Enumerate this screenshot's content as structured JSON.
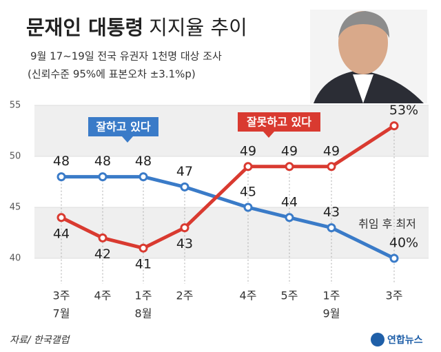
{
  "chart_data": {
    "type": "line",
    "title": {
      "bold": "문재인 대통령",
      "regular": "지지율 추이"
    },
    "subtitle": [
      "9월 17~19일 전국 유권자 1천명 대상 조사",
      "(신뢰수준 95%에 표본오차 ±3.1%p)"
    ],
    "categories": [
      "3주",
      "4주",
      "1주",
      "2주",
      "4주",
      "5주",
      "1주",
      "3주"
    ],
    "month_labels": [
      "7월",
      null,
      "8월",
      null,
      null,
      null,
      "9월",
      null
    ],
    "series": [
      {
        "name": "잘하고 있다",
        "color": "#3a7bc8",
        "values": [
          48,
          48,
          48,
          47,
          45,
          44,
          43,
          40
        ],
        "value_labels": [
          "48",
          "48",
          "48",
          "47",
          "45",
          "44",
          "43",
          "40%"
        ]
      },
      {
        "name": "잘못하고 있다",
        "color": "#d93a30",
        "values": [
          44,
          42,
          41,
          43,
          49,
          49,
          49,
          53
        ],
        "value_labels": [
          "44",
          "42",
          "41",
          "43",
          "49",
          "49",
          "49",
          "53%"
        ]
      }
    ],
    "ylim": [
      40,
      55
    ],
    "yticks": [
      40,
      45,
      50,
      55
    ],
    "grid": true,
    "annotation": "취임 후 최저",
    "source": "자료/ 한국갤럽",
    "logo": "연합뉴스"
  }
}
